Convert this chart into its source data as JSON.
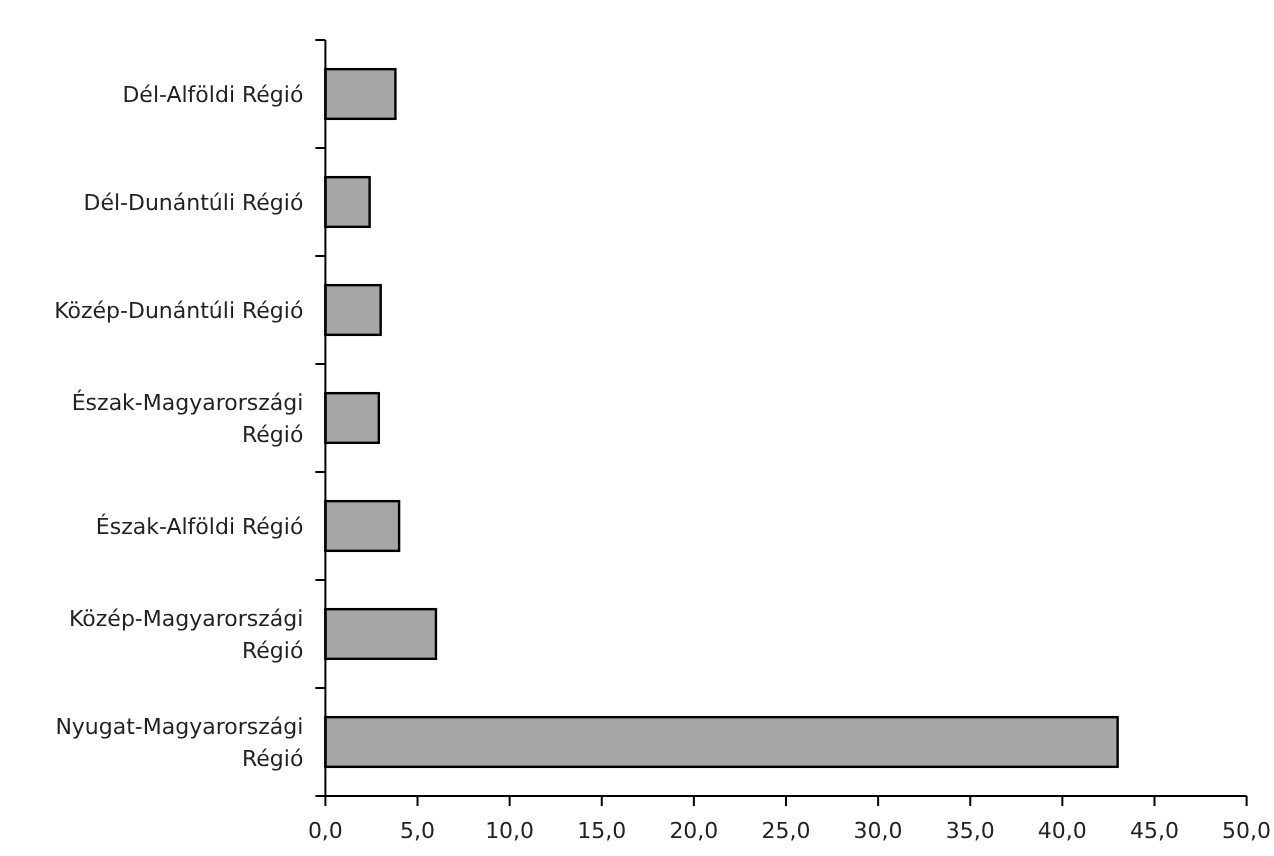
{
  "chart_data": {
    "type": "bar",
    "orientation": "horizontal",
    "categories": [
      "Dél-Alföldi Régió",
      "Dél-Dunántúli Régió",
      "Közép-Dunántúli Régió",
      "Észak-Magyarországi Régió",
      "Észak-Alföldi Régió",
      "Közép-Magyarországi Régió",
      "Nyugat-Magyarországi Régió"
    ],
    "values": [
      3.8,
      2.4,
      3.0,
      2.9,
      4.0,
      6.0,
      43.0
    ],
    "color": "#a6a6a6",
    "xlim": [
      0,
      50
    ],
    "xticks": [
      {
        "value": 0,
        "label": "0,0"
      },
      {
        "value": 5,
        "label": "5,0"
      },
      {
        "value": 10,
        "label": "10,0"
      },
      {
        "value": 15,
        "label": "15,0"
      },
      {
        "value": 20,
        "label": "20,0"
      },
      {
        "value": 25,
        "label": "25,0"
      },
      {
        "value": 30,
        "label": "30,0"
      },
      {
        "value": 35,
        "label": "35,0"
      },
      {
        "value": 40,
        "label": "40,0"
      },
      {
        "value": 45,
        "label": "45,0"
      },
      {
        "value": 50,
        "label": "50,0"
      }
    ],
    "grid": false
  }
}
